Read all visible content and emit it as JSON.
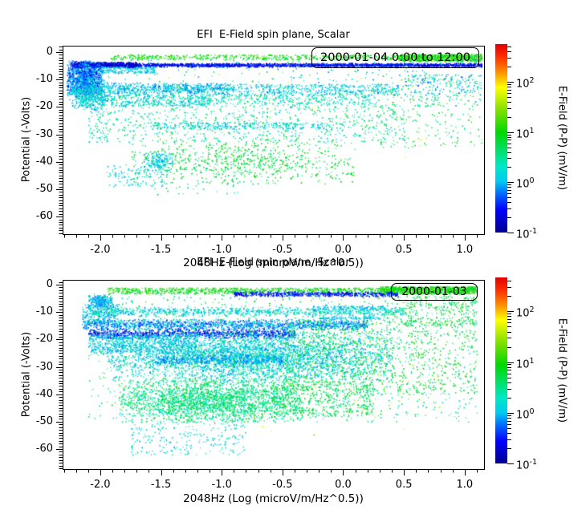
{
  "figure": {
    "background": "#ffffff",
    "frame_color": "#000000",
    "text_color": "#000000"
  },
  "colormap_domain": [
    -1,
    2.76
  ],
  "colormap": [
    {
      "t": 0.0,
      "color": "#000090"
    },
    {
      "t": 0.12,
      "color": "#0000ff"
    },
    {
      "t": 0.21,
      "color": "#0070ff"
    },
    {
      "t": 0.27,
      "color": "#00c8f0"
    },
    {
      "t": 0.35,
      "color": "#00e8c8"
    },
    {
      "t": 0.43,
      "color": "#00e070"
    },
    {
      "t": 0.53,
      "color": "#00d800"
    },
    {
      "t": 0.65,
      "color": "#80e000"
    },
    {
      "t": 0.77,
      "color": "#ffff00"
    },
    {
      "t": 0.85,
      "color": "#ff9000"
    },
    {
      "t": 0.93,
      "color": "#ff3000"
    },
    {
      "t": 1.0,
      "color": "#e00000"
    }
  ],
  "chart_data": [
    {
      "type": "scatter",
      "title": "EFI  E-Field spin plane, Scalar",
      "xlabel": "2048Hz (Log (microV/m/Hz^0.5))",
      "ylabel": "Potential (-Volts)",
      "legend": "2000-01-04 0:00 to 12:00",
      "xlim": [
        -2.31,
        1.16
      ],
      "ylim": [
        -66.4,
        2.34
      ],
      "xticks": [
        -2.0,
        -1.5,
        -1.0,
        -0.5,
        0.0,
        0.5,
        1.0
      ],
      "xtick_labels": [
        "-2.0",
        "-1.5",
        "-1.0",
        "-0.5",
        "0.0",
        "0.5",
        "1.0"
      ],
      "yticks": [
        0,
        -10,
        -20,
        -30,
        -40,
        -50,
        -60
      ],
      "ytick_labels": [
        "0",
        "-10",
        "-20",
        "-30",
        "-40",
        "-50",
        "-60"
      ],
      "x_minor_step": 0.1,
      "y_minor_step": 1,
      "grid": false,
      "legend_position": "top-right",
      "colorbar": {
        "label": "E-Field (P-P) (mV/m)",
        "log_range": [
          -1,
          2.75
        ],
        "tick_exponents": [
          2,
          1,
          0,
          -1
        ]
      },
      "clusters": [
        {
          "x": [
            -1.95,
            1.14
          ],
          "y": [
            -2.6,
            -0.8
          ],
          "n": 650,
          "c": [
            0.7,
            1.3
          ],
          "d": "u"
        },
        {
          "x": [
            0.45,
            1.14
          ],
          "y": [
            -3.2,
            -0.6
          ],
          "n": 600,
          "c": [
            0.7,
            1.35
          ],
          "d": "u"
        },
        {
          "x": [
            -2.2,
            1.14
          ],
          "y": [
            -5.3,
            -3.9
          ],
          "n": 2300,
          "c": [
            -0.9,
            -0.25
          ],
          "d": "gy"
        },
        {
          "x": [
            -2.25,
            -1.7
          ],
          "y": [
            -5.5,
            -3.5
          ],
          "n": 500,
          "c": [
            -1.0,
            -0.5
          ],
          "d": "u"
        },
        {
          "x": [
            -2.24,
            -1.55
          ],
          "y": [
            -7.5,
            -5.2
          ],
          "n": 300,
          "c": [
            -0.2,
            0.35
          ],
          "d": "u"
        },
        {
          "x": [
            -2.28,
            -1.98
          ],
          "y": [
            -16,
            -3
          ],
          "n": 1000,
          "c": [
            -0.65,
            0.2
          ],
          "d": "g"
        },
        {
          "x": [
            -2.26,
            -1.92
          ],
          "y": [
            -21,
            -9
          ],
          "n": 450,
          "c": [
            -0.25,
            0.4
          ],
          "d": "g"
        },
        {
          "x": [
            -2.25,
            -0.9
          ],
          "y": [
            -15.5,
            -11
          ],
          "n": 850,
          "c": [
            -0.3,
            0.45
          ],
          "d": "gy"
        },
        {
          "x": [
            -0.9,
            0.45
          ],
          "y": [
            -15.5,
            -11.5
          ],
          "n": 450,
          "c": [
            -0.2,
            0.5
          ],
          "d": "u"
        },
        {
          "x": [
            -2.2,
            -1.1
          ],
          "y": [
            -19.5,
            -15.5
          ],
          "n": 450,
          "c": [
            -0.15,
            0.6
          ],
          "d": "u"
        },
        {
          "x": [
            -1.2,
            0.3
          ],
          "y": [
            -19,
            -15.5
          ],
          "n": 320,
          "c": [
            0.0,
            0.7
          ],
          "d": "u"
        },
        {
          "x": [
            -1.6,
            0.0
          ],
          "y": [
            -28,
            -25.5
          ],
          "n": 280,
          "c": [
            -0.15,
            0.4
          ],
          "d": "u"
        },
        {
          "x": [
            -2.1,
            0.5
          ],
          "y": [
            -33,
            -19
          ],
          "n": 800,
          "c": [
            0.0,
            0.9
          ],
          "d": "u"
        },
        {
          "x": [
            0.3,
            1.14
          ],
          "y": [
            -35,
            -8
          ],
          "n": 220,
          "c": [
            0.3,
            1.1
          ],
          "d": "u"
        },
        {
          "x": [
            0.5,
            1.14
          ],
          "y": [
            -16,
            -8
          ],
          "n": 160,
          "c": [
            -0.4,
            0.5
          ],
          "d": "u"
        },
        {
          "x": [
            -1.75,
            0.1
          ],
          "y": [
            -48,
            -32
          ],
          "n": 750,
          "c": [
            0.45,
            1.1
          ],
          "d": "g"
        },
        {
          "x": [
            -1.65,
            -1.4
          ],
          "y": [
            -43,
            -36
          ],
          "n": 160,
          "c": [
            -0.15,
            0.3
          ],
          "d": "g"
        },
        {
          "x": [
            -1.95,
            -1.45
          ],
          "y": [
            -49,
            -41
          ],
          "n": 130,
          "c": [
            -0.1,
            0.45
          ],
          "d": "u"
        },
        {
          "x": [
            -1.6,
            -0.8
          ],
          "y": [
            -52,
            -47
          ],
          "n": 25,
          "c": [
            0.2,
            0.8
          ],
          "d": "u"
        },
        {
          "x": [
            -2.2,
            1.1
          ],
          "y": [
            -20,
            -2
          ],
          "n": 350,
          "c": [
            -0.3,
            1.0
          ],
          "d": "u"
        },
        {
          "x": [
            -1.5,
            0.8
          ],
          "y": [
            -40,
            -5
          ],
          "n": 30,
          "c": [
            1.4,
            2.0
          ],
          "d": "u"
        }
      ]
    },
    {
      "type": "scatter",
      "title": "EFI  E-Field spin plane, Scalar",
      "xlabel": "2048Hz (Log (microV/m/Hz^0.5))",
      "ylabel": "Potential (-Volts)",
      "legend": "2000-01-03",
      "xlim": [
        -2.31,
        1.16
      ],
      "ylim": [
        -67.3,
        1.76
      ],
      "xticks": [
        -2.0,
        -1.5,
        -1.0,
        -0.5,
        0.0,
        0.5,
        1.0
      ],
      "xtick_labels": [
        "-2.0",
        "-1.5",
        "-1.0",
        "-0.5",
        "0.0",
        "0.5",
        "1.0"
      ],
      "yticks": [
        0,
        -10,
        -20,
        -30,
        -40,
        -50,
        -60
      ],
      "ytick_labels": [
        "0",
        "-10",
        "-20",
        "-30",
        "-40",
        "-50",
        "-60"
      ],
      "x_minor_step": 0.1,
      "y_minor_step": 1,
      "grid": false,
      "legend_position": "top-right",
      "colorbar": {
        "label": "E-Field (P-P) (mV/m)",
        "log_range": [
          -1,
          2.67
        ],
        "tick_exponents": [
          2,
          1,
          0,
          -1
        ]
      },
      "clusters": [
        {
          "x": [
            -1.95,
            1.1
          ],
          "y": [
            -3.2,
            -1.0
          ],
          "n": 1100,
          "c": [
            0.65,
            1.3
          ],
          "d": "u"
        },
        {
          "x": [
            0.3,
            1.1
          ],
          "y": [
            -3.0,
            -0.5
          ],
          "n": 800,
          "c": [
            0.7,
            1.35
          ],
          "d": "u"
        },
        {
          "x": [
            -0.9,
            0.45
          ],
          "y": [
            -4.2,
            -2.4
          ],
          "n": 550,
          "c": [
            -0.85,
            -0.2
          ],
          "d": "gy"
        },
        {
          "x": [
            -2.1,
            -1.9
          ],
          "y": [
            -8,
            -3.5
          ],
          "n": 260,
          "c": [
            -0.3,
            0.3
          ],
          "d": "g"
        },
        {
          "x": [
            -2.15,
            -1.85
          ],
          "y": [
            -14,
            -7
          ],
          "n": 220,
          "c": [
            -0.3,
            0.3
          ],
          "d": "u"
        },
        {
          "x": [
            -2.1,
            0.5
          ],
          "y": [
            -11.5,
            -8
          ],
          "n": 850,
          "c": [
            -0.15,
            0.55
          ],
          "d": "gy"
        },
        {
          "x": [
            -2.15,
            0.2
          ],
          "y": [
            -16.5,
            -12.5
          ],
          "n": 1500,
          "c": [
            -0.5,
            0.3
          ],
          "d": "gy"
        },
        {
          "x": [
            -2.1,
            -0.4
          ],
          "y": [
            -19.5,
            -16
          ],
          "n": 900,
          "c": [
            -0.85,
            -0.15
          ],
          "d": "gy"
        },
        {
          "x": [
            -1.95,
            0.4
          ],
          "y": [
            -35,
            -17
          ],
          "n": 3800,
          "c": [
            -0.2,
            0.6
          ],
          "d": "g"
        },
        {
          "x": [
            -1.55,
            -0.5
          ],
          "y": [
            -28.5,
            -25.5
          ],
          "n": 450,
          "c": [
            -0.3,
            0.15
          ],
          "d": "u"
        },
        {
          "x": [
            -0.5,
            1.1
          ],
          "y": [
            -40,
            -13
          ],
          "n": 800,
          "c": [
            0.5,
            1.2
          ],
          "d": "u"
        },
        {
          "x": [
            -1.85,
            -0.35
          ],
          "y": [
            -50,
            -34
          ],
          "n": 2300,
          "c": [
            0.2,
            0.95
          ],
          "d": "g"
        },
        {
          "x": [
            -0.6,
            0.25
          ],
          "y": [
            -48,
            -35
          ],
          "n": 500,
          "c": [
            0.4,
            1.05
          ],
          "d": "u"
        },
        {
          "x": [
            -1.75,
            -0.8
          ],
          "y": [
            -62,
            -50
          ],
          "n": 230,
          "c": [
            -0.1,
            0.5
          ],
          "d": "u"
        },
        {
          "x": [
            0.35,
            1.1
          ],
          "y": [
            -15,
            -4
          ],
          "n": 300,
          "c": [
            0.4,
            1.1
          ],
          "d": "u"
        },
        {
          "x": [
            -0.25,
            0.35
          ],
          "y": [
            -9,
            -7.5
          ],
          "n": 120,
          "c": [
            -0.15,
            0.2
          ],
          "d": "u"
        },
        {
          "x": [
            -0.2,
            0.3
          ],
          "y": [
            -12.5,
            -11.5
          ],
          "n": 100,
          "c": [
            -0.15,
            0.2
          ],
          "d": "u"
        },
        {
          "x": [
            -2.1,
            1.1
          ],
          "y": [
            -50,
            -3
          ],
          "n": 1300,
          "c": [
            0.0,
            1.0
          ],
          "d": "u"
        },
        {
          "x": [
            -1.5,
            0.9
          ],
          "y": [
            -55,
            -5
          ],
          "n": 90,
          "c": [
            1.4,
            2.05
          ],
          "d": "u"
        },
        {
          "x": [
            -2.1,
            -1.2
          ],
          "y": [
            -25,
            -18
          ],
          "n": 700,
          "c": [
            -0.2,
            0.4
          ],
          "d": "u"
        }
      ]
    }
  ]
}
